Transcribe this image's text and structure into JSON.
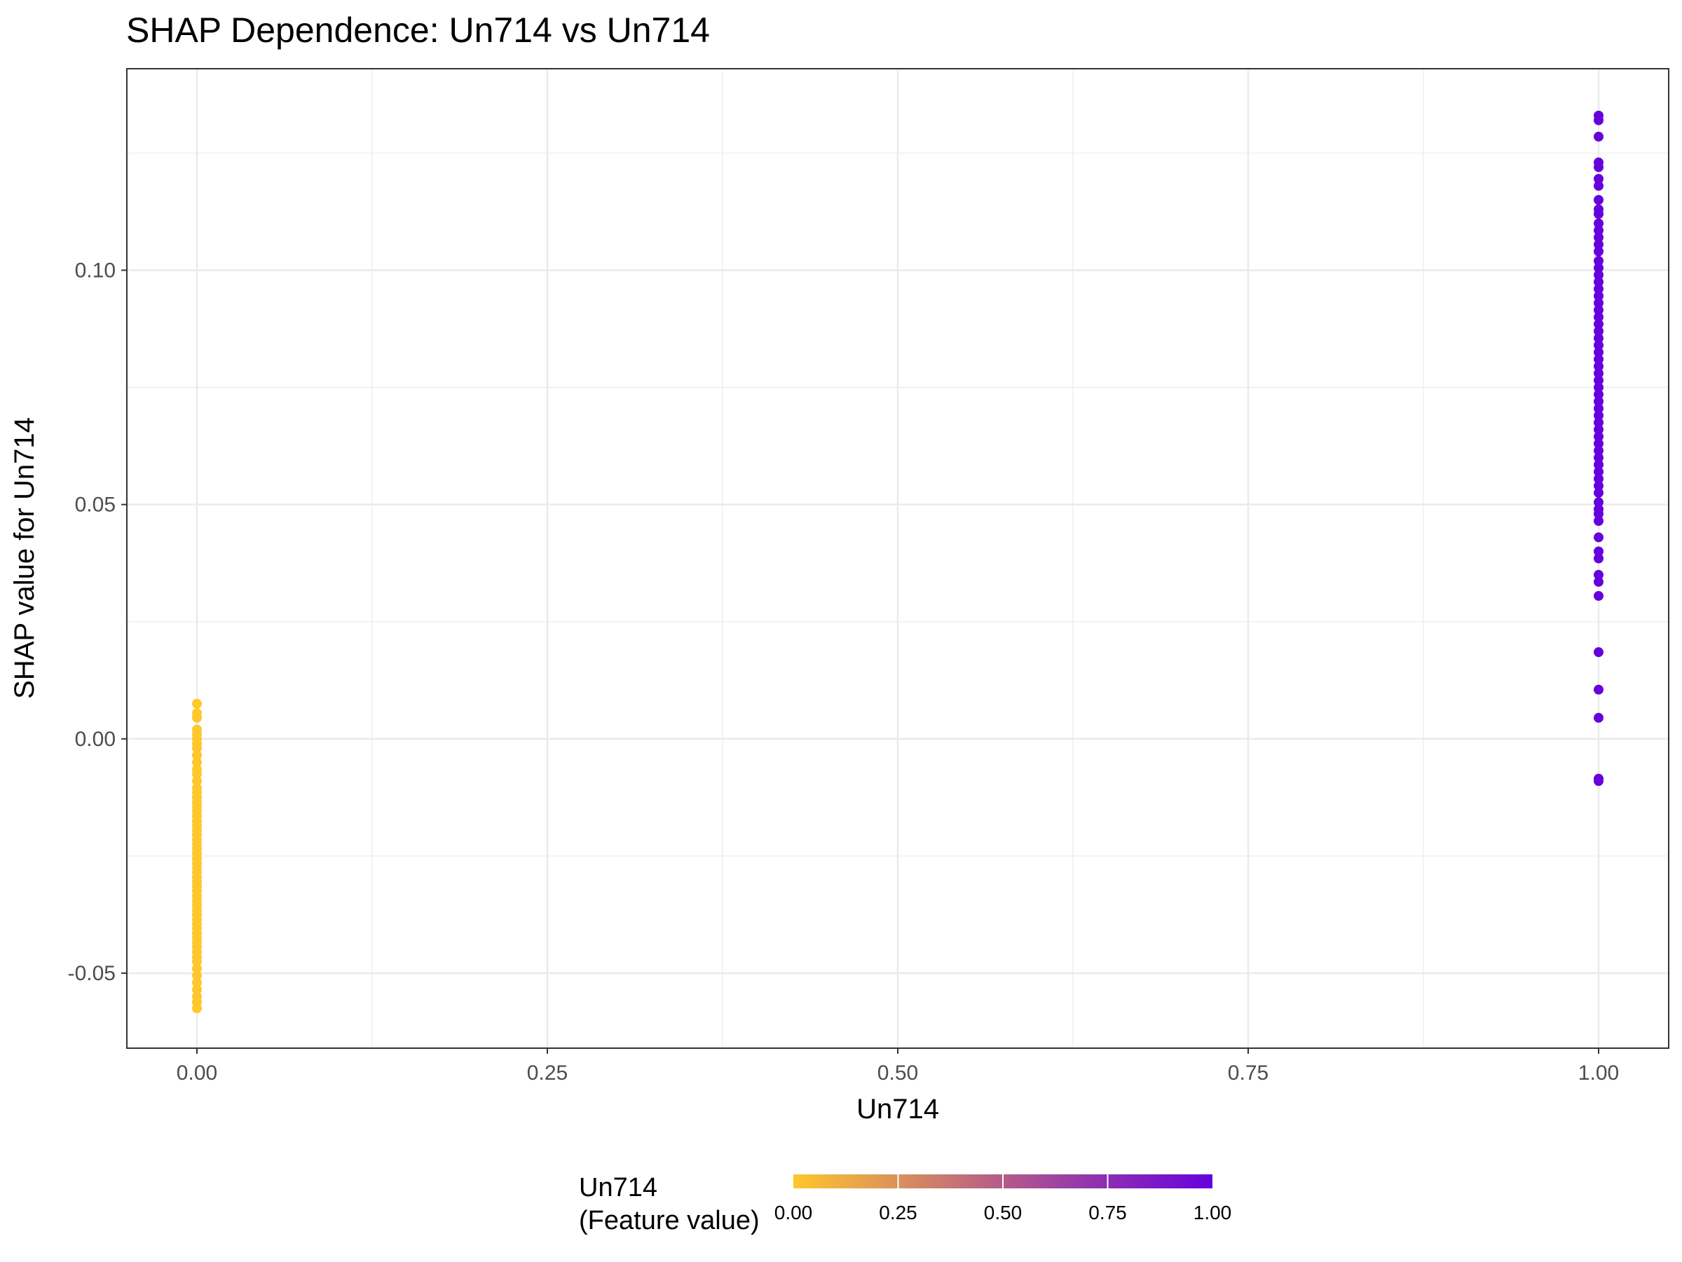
{
  "chart_data": {
    "type": "scatter",
    "title": "SHAP Dependence: Un714 vs Un714",
    "xlabel": "Un714",
    "ylabel": "SHAP value for Un714",
    "xlim": [
      -0.05,
      1.05
    ],
    "ylim": [
      -0.066,
      0.143
    ],
    "x_ticks": [
      0.0,
      0.25,
      0.5,
      0.75,
      1.0
    ],
    "x_tick_labels": [
      "0.00",
      "0.25",
      "0.50",
      "0.75",
      "1.00"
    ],
    "y_ticks": [
      -0.05,
      0.0,
      0.05,
      0.1
    ],
    "y_tick_labels": [
      "-0.05",
      "0.00",
      "0.05",
      "0.10"
    ],
    "grid": true,
    "color_scale": {
      "title_line1": "Un714",
      "title_line2": "(Feature value)",
      "low_color": "#FFC72C",
      "high_color": "#6600DD",
      "range": [
        0,
        1
      ],
      "ticks": [
        0.0,
        0.25,
        0.5,
        0.75,
        1.0
      ],
      "tick_labels": [
        "0.00",
        "0.25",
        "0.50",
        "0.75",
        "1.00"
      ],
      "placement": "bottom"
    },
    "series": [
      {
        "x": 0.0,
        "color": "#FFC72C",
        "y": [
          0.0075,
          0.0055,
          0.0045,
          0.002,
          0.001,
          0.0,
          -0.001,
          -0.002,
          -0.0035,
          -0.005,
          -0.0065,
          -0.0075,
          -0.009,
          -0.0105,
          -0.0115,
          -0.0125,
          -0.0135,
          -0.0145,
          -0.0155,
          -0.0165,
          -0.0175,
          -0.0185,
          -0.0195,
          -0.0205,
          -0.0215,
          -0.0225,
          -0.0235,
          -0.0245,
          -0.0255,
          -0.0265,
          -0.0275,
          -0.0285,
          -0.0295,
          -0.0305,
          -0.0315,
          -0.0325,
          -0.0335,
          -0.0345,
          -0.0355,
          -0.0365,
          -0.0375,
          -0.0385,
          -0.0395,
          -0.0405,
          -0.0415,
          -0.0425,
          -0.0435,
          -0.0445,
          -0.0455,
          -0.0465,
          -0.0475,
          -0.049,
          -0.0505,
          -0.052,
          -0.0535,
          -0.055,
          -0.0562,
          -0.0575
        ]
      },
      {
        "x": 1.0,
        "color": "#6600DD",
        "y": [
          0.133,
          0.132,
          0.1285,
          0.123,
          0.122,
          0.1195,
          0.118,
          0.115,
          0.113,
          0.112,
          0.11,
          0.1085,
          0.107,
          0.1055,
          0.104,
          0.102,
          0.1005,
          0.099,
          0.0975,
          0.096,
          0.0945,
          0.093,
          0.0915,
          0.09,
          0.0885,
          0.087,
          0.0855,
          0.084,
          0.0825,
          0.081,
          0.0795,
          0.078,
          0.0765,
          0.075,
          0.0735,
          0.072,
          0.0705,
          0.069,
          0.0675,
          0.066,
          0.0645,
          0.063,
          0.0615,
          0.06,
          0.0585,
          0.057,
          0.0555,
          0.054,
          0.0525,
          0.0505,
          0.049,
          0.048,
          0.0465,
          0.043,
          0.04,
          0.0385,
          0.035,
          0.0335,
          0.0305,
          0.0185,
          0.0105,
          0.0045,
          -0.0085,
          -0.009
        ]
      }
    ]
  }
}
